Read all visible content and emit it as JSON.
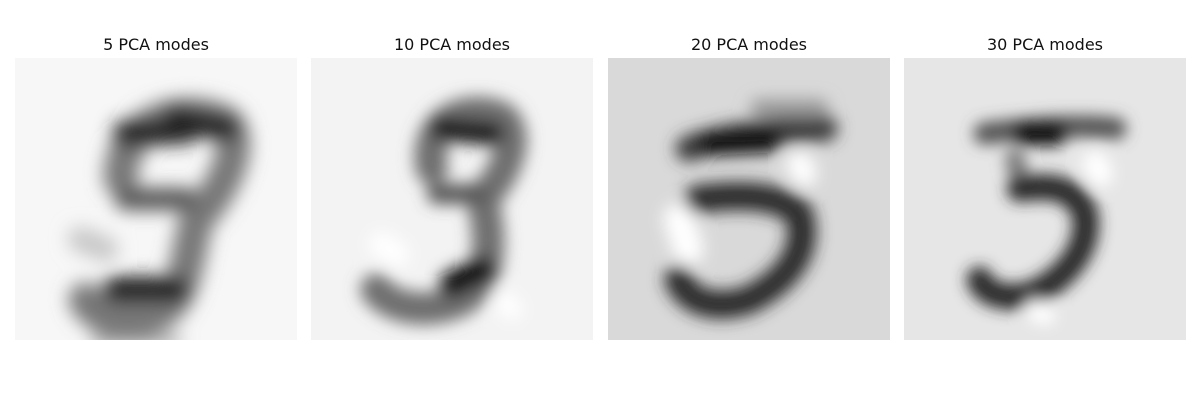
{
  "figure": {
    "panels": [
      {
        "title": "5 PCA modes",
        "background": "#f7f7f7"
      },
      {
        "title": "10 PCA modes",
        "background": "#f3f3f3"
      },
      {
        "title": "20 PCA modes",
        "background": "#d9d9d9"
      },
      {
        "title": "30 PCA modes",
        "background": "#e6e6e6"
      }
    ]
  }
}
